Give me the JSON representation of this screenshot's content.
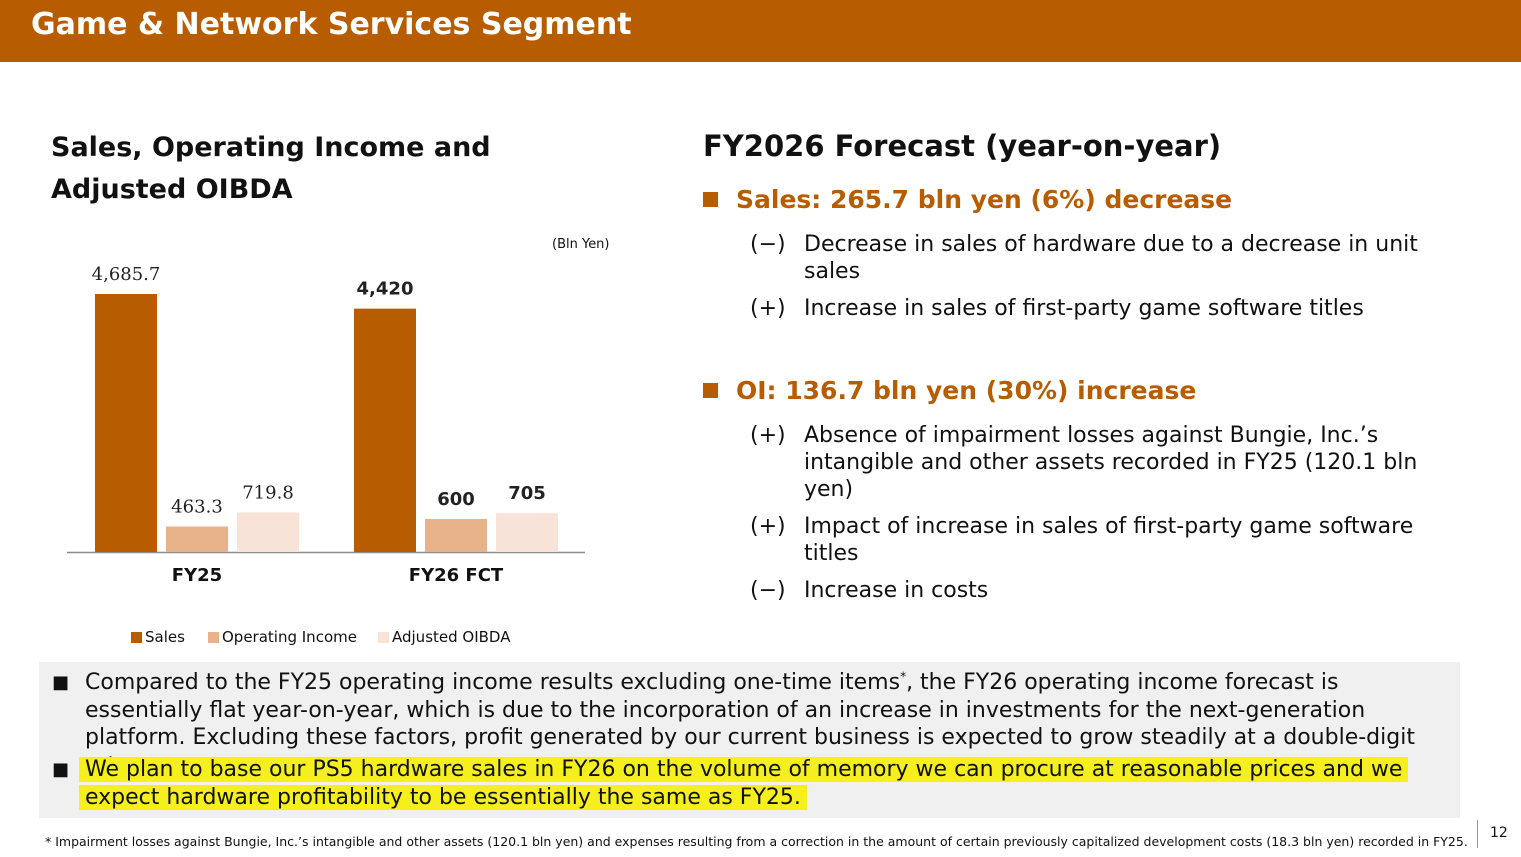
{
  "header": {
    "title": "Game & Network Services Segment"
  },
  "chart_data": {
    "type": "bar",
    "title": "Sales, Operating Income and Adjusted OIBDA",
    "units": "(Bln Yen)",
    "categories": [
      "FY25",
      "FY26 FCT"
    ],
    "series": [
      {
        "name": "Sales",
        "values": [
          4685.7,
          4420
        ],
        "labels": [
          "4,685.7",
          "4,420"
        ],
        "color": "#b85c00"
      },
      {
        "name": "Operating Income",
        "values": [
          463.3,
          600
        ],
        "labels": [
          "463.3",
          "600"
        ],
        "color": "#e8b28a"
      },
      {
        "name": "Adjusted OIBDA",
        "values": [
          719.8,
          705
        ],
        "labels": [
          "719.8",
          "705"
        ],
        "color": "#f7e3d7"
      }
    ],
    "bold_label_categories": [
      "FY26 FCT"
    ],
    "ylim": [
      0,
      4685.7
    ],
    "grid": false,
    "legend": "bottom"
  },
  "forecast": {
    "title": "FY2026 Forecast (year-on-year)",
    "sales": {
      "heading": "Sales: 265.7 bln yen (6%) decrease",
      "points": [
        {
          "sign": "(−)",
          "text": "Decrease in sales of hardware due to a decrease in unit sales"
        },
        {
          "sign": "(+)",
          "text": "Increase in sales of first-party game software titles"
        }
      ]
    },
    "oi": {
      "heading": "OI: 136.7 bln yen (30%) increase",
      "points": [
        {
          "sign": "(+)",
          "text": "Absence of impairment losses against Bungie, Inc.’s intangible and other assets recorded in FY25 (120.1 bln yen)"
        },
        {
          "sign": "(+)",
          "text": "Impact of increase in sales of first-party game software titles"
        },
        {
          "sign": "(−)",
          "text": "Increase in costs"
        }
      ]
    }
  },
  "summary": {
    "bullet": "■",
    "item1": {
      "before_mark": "Compared to the FY25 operating income results excluding one-time items",
      "mark": "*",
      "after_mark": ", the FY26 operating income forecast is essentially flat year-on-year, which is due to the incorporation of an increase in investments for the next-generation platform. Excluding these factors, profit generated by our current business is expected to grow steadily at a double-digit rate."
    },
    "item2": {
      "line1": "We plan to base our PS5 hardware sales in FY26 on the volume of memory we can procure at reasonable prices and we",
      "line2": "expect hardware profitability to be essentially the same as FY25."
    }
  },
  "footnote": "* Impairment losses against Bungie, Inc.’s intangible and other assets (120.1 bln yen) and expenses resulting from a correction in the amount of certain previously capitalized development costs (18.3 bln yen) recorded in FY25.",
  "page_number": "12",
  "colors": {
    "brand": "#b85c00",
    "highlight": "#f5ef1e",
    "summary_bg": "#f0f0f0"
  }
}
